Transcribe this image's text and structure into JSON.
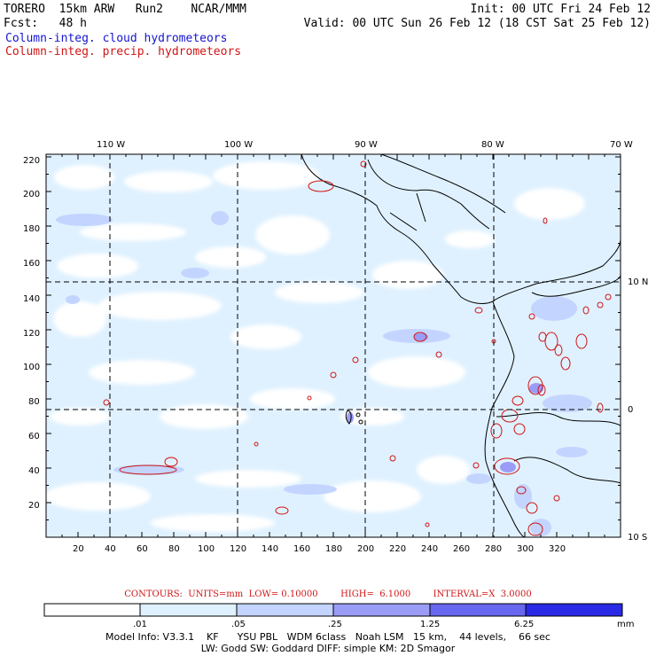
{
  "header": {
    "line1_left": "TORERO  15km ARW   Run2    NCAR/MMM",
    "line1_right": "Init: 00 UTC Fri 24 Feb 12",
    "line2_left": "Fcst:   48 h",
    "line2_right": "Valid: 00 UTC Sun 26 Feb 12 (18 CST Sat 25 Feb 12)",
    "legend_cloud": "Column-integ. cloud hydrometeors",
    "legend_precip": "Column-integ. precip. hydrometeors"
  },
  "colors": {
    "cloud_line": "#1515d0",
    "precip_line": "#d01515",
    "fill_levels": [
      "#ffffff",
      "#dff1ff",
      "#c3d5ff",
      "#9a9cf6",
      "#6767ef",
      "#2a2ae6"
    ]
  },
  "map": {
    "lon_labels": [
      "110 W",
      "100 W",
      "90 W",
      "80 W",
      "70 W"
    ],
    "lat_labels": [
      "10 N",
      "0",
      "10 S"
    ],
    "y_ticks": [
      "220",
      "200",
      "180",
      "160",
      "140",
      "120",
      "100",
      "80",
      "60",
      "40",
      "20"
    ],
    "x_ticks": [
      "20",
      "40",
      "60",
      "80",
      "100",
      "120",
      "140",
      "160",
      "180",
      "200",
      "220",
      "240",
      "260",
      "280",
      "300",
      "320"
    ]
  },
  "contours": "CONTOURS:  UNITS=mm  LOW= 0.10000        HIGH=  6.1000        INTERVAL=X  3.0000",
  "colorbar": {
    "labels": [
      ".01",
      ".05",
      ".25",
      "1.25",
      "6.25"
    ],
    "unit": "mm"
  },
  "model_info": {
    "line1": "Model Info: V3.3.1    KF      YSU PBL   WDM 6class   Noah LSM   15 km,    44 levels,    66 sec",
    "line2": "LW: Godd SW: Goddard DIFF: simple KM: 2D Smagor"
  }
}
